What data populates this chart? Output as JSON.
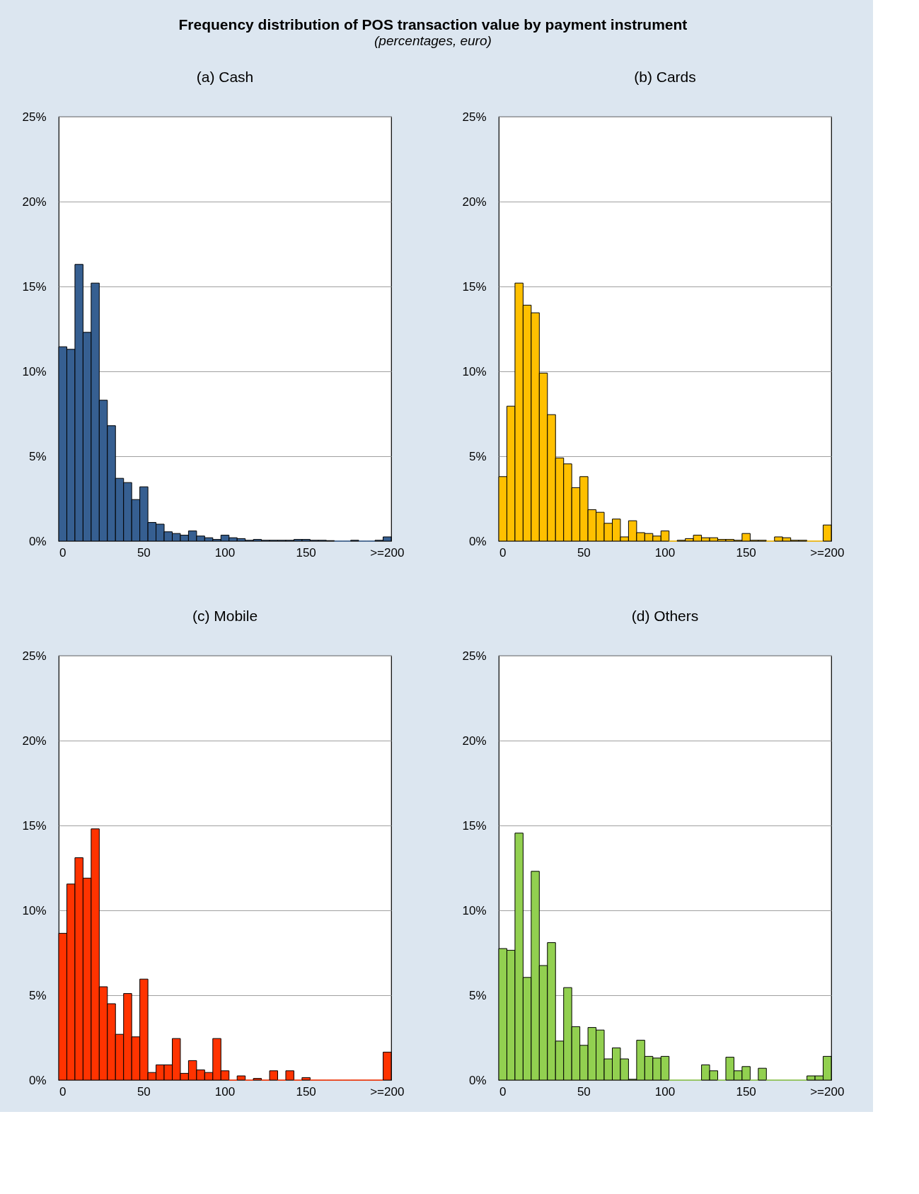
{
  "chart_data": [
    {
      "type": "bar",
      "title": "(a) Cash",
      "annotations": [
        "Frequency distribution of POS transaction value by payment instrument",
        "(percentages, euro)"
      ],
      "categories": [
        "0",
        null,
        null,
        null,
        null,
        null,
        null,
        null,
        null,
        null,
        "50",
        null,
        null,
        null,
        null,
        null,
        null,
        null,
        null,
        null,
        "100",
        null,
        null,
        null,
        null,
        null,
        null,
        null,
        null,
        null,
        "150",
        null,
        null,
        null,
        null,
        null,
        null,
        null,
        null,
        null,
        ">=200"
      ],
      "color": "#365f91",
      "values": [
        11.45,
        11.3,
        16.3,
        12.3,
        15.2,
        8.3,
        6.8,
        3.7,
        3.45,
        2.45,
        3.2,
        1.1,
        1.0,
        0.55,
        0.45,
        0.35,
        0.6,
        0.3,
        0.2,
        0.1,
        0.35,
        0.2,
        0.15,
        0.05,
        0.1,
        0.05,
        0.05,
        0.05,
        0.05,
        0.1,
        0.1,
        0.05,
        0.05,
        0.03,
        0,
        0,
        0.05,
        0,
        0,
        0.05,
        0.25
      ],
      "ylim": [
        0,
        25
      ],
      "yticks": [
        {
          "value": 0,
          "label": "0%"
        },
        {
          "value": 5,
          "label": "5%"
        },
        {
          "value": 10,
          "label": "10%"
        },
        {
          "value": 15,
          "label": "15%"
        },
        {
          "value": 20,
          "label": "20%"
        },
        {
          "value": 25,
          "label": "25%"
        }
      ],
      "grid": "y"
    },
    {
      "type": "bar",
      "title": "(b) Cards",
      "categories": [
        "0",
        null,
        null,
        null,
        null,
        null,
        null,
        null,
        null,
        null,
        "50",
        null,
        null,
        null,
        null,
        null,
        null,
        null,
        null,
        null,
        "100",
        null,
        null,
        null,
        null,
        null,
        null,
        null,
        null,
        null,
        "150",
        null,
        null,
        null,
        null,
        null,
        null,
        null,
        null,
        null,
        ">=200"
      ],
      "color": "#ffc000",
      "values": [
        3.8,
        7.95,
        15.2,
        13.9,
        13.45,
        9.9,
        7.45,
        4.9,
        4.55,
        3.15,
        3.8,
        1.85,
        1.7,
        1.05,
        1.3,
        0.25,
        1.2,
        0.5,
        0.45,
        0.3,
        0.6,
        0,
        0.05,
        0.15,
        0.35,
        0.2,
        0.2,
        0.1,
        0.1,
        0.05,
        0.45,
        0.05,
        0.05,
        0,
        0.25,
        0.2,
        0.05,
        0.05,
        0,
        0,
        0.95
      ],
      "ylim": [
        0,
        25
      ],
      "yticks": [
        {
          "value": 0,
          "label": "0%"
        },
        {
          "value": 5,
          "label": "5%"
        },
        {
          "value": 10,
          "label": "10%"
        },
        {
          "value": 15,
          "label": "15%"
        },
        {
          "value": 20,
          "label": "20%"
        },
        {
          "value": 25,
          "label": "25%"
        }
      ],
      "grid": "y"
    },
    {
      "type": "bar",
      "title": "(c)  Mobile",
      "categories": [
        "0",
        null,
        null,
        null,
        null,
        null,
        null,
        null,
        null,
        null,
        "50",
        null,
        null,
        null,
        null,
        null,
        null,
        null,
        null,
        null,
        "100",
        null,
        null,
        null,
        null,
        null,
        null,
        null,
        null,
        null,
        "150",
        null,
        null,
        null,
        null,
        null,
        null,
        null,
        null,
        null,
        ">=200"
      ],
      "color": "#ff3300",
      "values": [
        8.65,
        11.55,
        13.1,
        11.9,
        14.8,
        5.5,
        4.5,
        2.7,
        5.1,
        2.55,
        5.95,
        0.45,
        0.9,
        0.9,
        2.45,
        0.4,
        1.15,
        0.6,
        0.45,
        2.45,
        0.55,
        0,
        0.25,
        0,
        0.1,
        0,
        0.55,
        0,
        0.55,
        0,
        0.15,
        0,
        0,
        0,
        0,
        0,
        0,
        0,
        0,
        0,
        1.65
      ],
      "ylim": [
        0,
        25
      ],
      "yticks": [
        {
          "value": 0,
          "label": "0%"
        },
        {
          "value": 5,
          "label": "5%"
        },
        {
          "value": 10,
          "label": "10%"
        },
        {
          "value": 15,
          "label": "15%"
        },
        {
          "value": 20,
          "label": "20%"
        },
        {
          "value": 25,
          "label": "25%"
        }
      ],
      "grid": "y"
    },
    {
      "type": "bar",
      "title": "(d) Others",
      "categories": [
        "0",
        null,
        null,
        null,
        null,
        null,
        null,
        null,
        null,
        null,
        "50",
        null,
        null,
        null,
        null,
        null,
        null,
        null,
        null,
        null,
        "100",
        null,
        null,
        null,
        null,
        null,
        null,
        null,
        null,
        null,
        "150",
        null,
        null,
        null,
        null,
        null,
        null,
        null,
        null,
        null,
        ">=200"
      ],
      "color": "#92d050",
      "values": [
        7.75,
        7.65,
        14.55,
        6.05,
        12.3,
        6.75,
        8.1,
        2.3,
        5.45,
        3.15,
        2.05,
        3.1,
        2.95,
        1.25,
        1.9,
        1.25,
        0.05,
        2.35,
        1.4,
        1.3,
        1.4,
        0,
        0,
        0,
        0,
        0.9,
        0.55,
        0,
        1.35,
        0.55,
        0.8,
        0,
        0.7,
        0,
        0,
        0,
        0,
        0,
        0.25,
        0.25,
        1.4
      ],
      "ylim": [
        0,
        25
      ],
      "yticks": [
        {
          "value": 0,
          "label": "0%"
        },
        {
          "value": 5,
          "label": "5%"
        },
        {
          "value": 10,
          "label": "10%"
        },
        {
          "value": 15,
          "label": "15%"
        },
        {
          "value": 20,
          "label": "20%"
        },
        {
          "value": 25,
          "label": "25%"
        }
      ],
      "grid": "y"
    }
  ]
}
